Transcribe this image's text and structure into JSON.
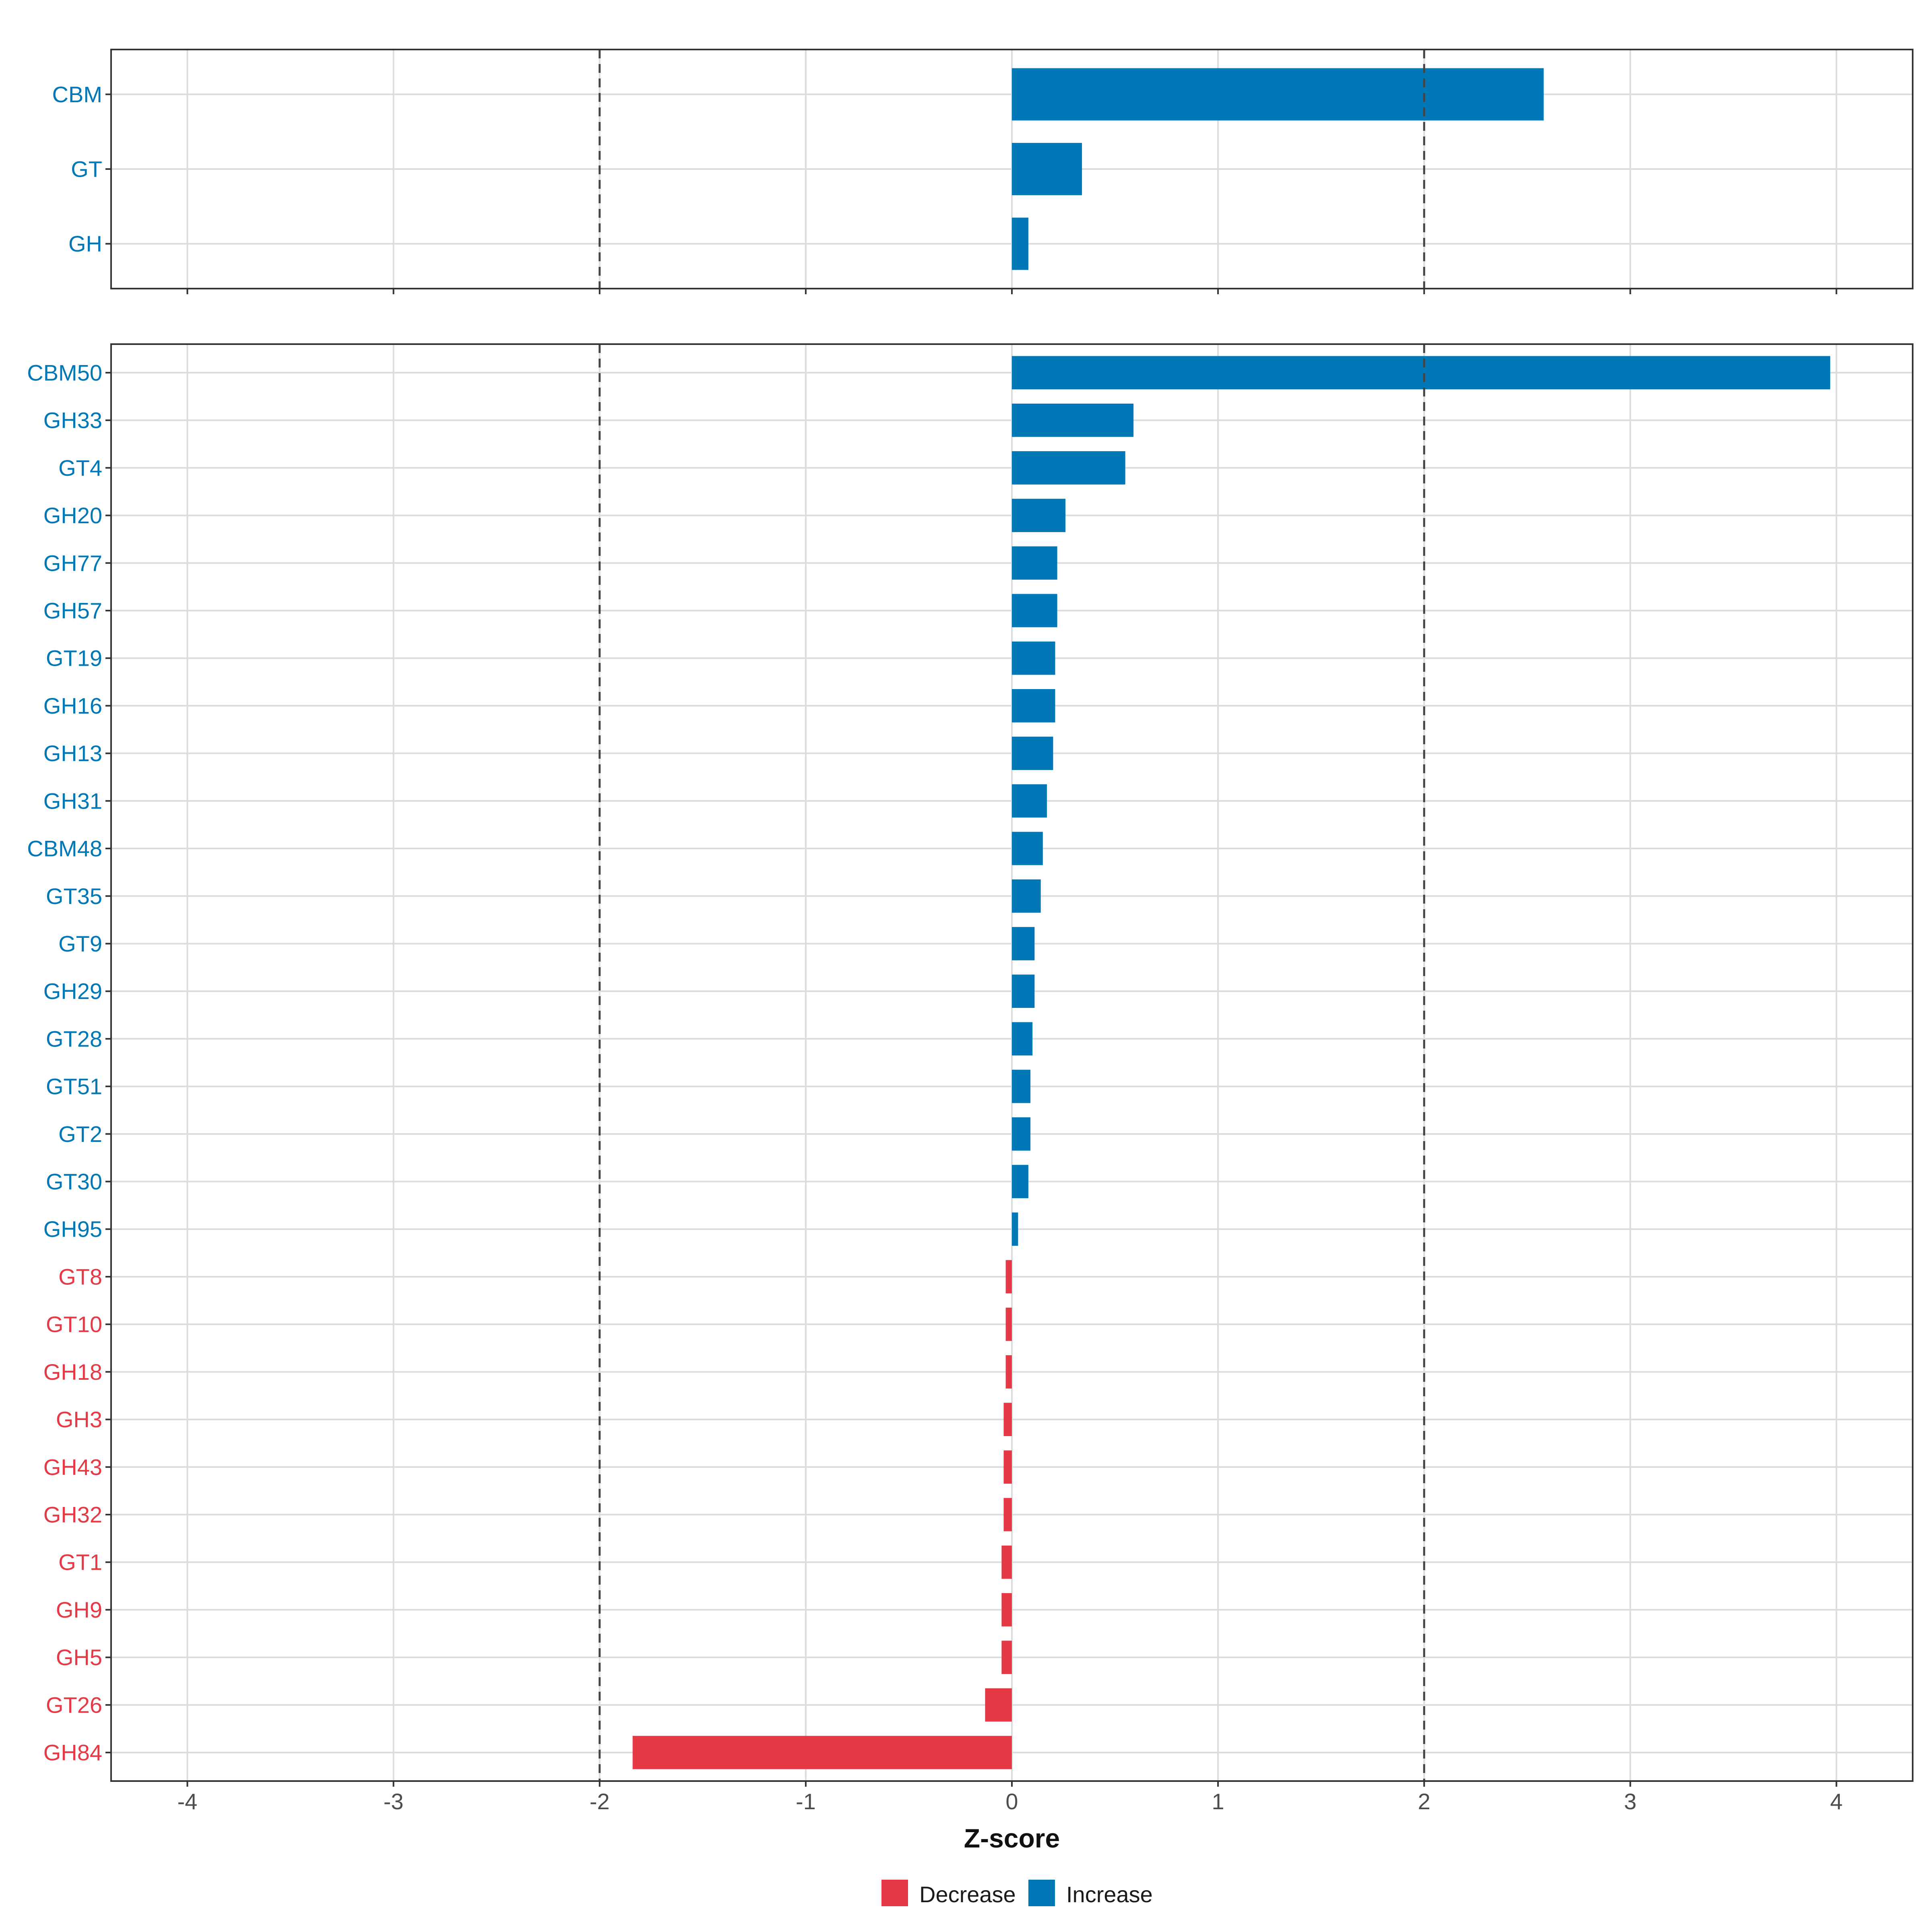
{
  "chart_data": {
    "type": "bar",
    "orientation": "horizontal",
    "xlabel": "Z-score",
    "xlim": [
      -4.37,
      4.37
    ],
    "xticks": [
      -4,
      -3,
      -2,
      -1,
      0,
      1,
      2,
      3,
      4
    ],
    "reference_lines": [
      -2,
      2
    ],
    "grid": true,
    "legend_position": "bottom",
    "colors": {
      "Decrease": "#e63946",
      "Increase": "#0077b6"
    },
    "panels": [
      {
        "categories": [
          "CBM",
          "GT",
          "GH"
        ],
        "values": [
          2.58,
          0.34,
          0.08
        ]
      },
      {
        "categories": [
          "CBM50",
          "GH33",
          "GT4",
          "GH20",
          "GH77",
          "GH57",
          "GT19",
          "GH16",
          "GH13",
          "GH31",
          "CBM48",
          "GT35",
          "GT9",
          "GH29",
          "GT28",
          "GT51",
          "GT2",
          "GT30",
          "GH95",
          "GT8",
          "GT10",
          "GH18",
          "GH3",
          "GH43",
          "GH32",
          "GT1",
          "GH9",
          "GH5",
          "GT26",
          "GH84"
        ],
        "values": [
          3.97,
          0.59,
          0.55,
          0.26,
          0.22,
          0.22,
          0.21,
          0.21,
          0.2,
          0.17,
          0.15,
          0.14,
          0.11,
          0.11,
          0.1,
          0.09,
          0.09,
          0.08,
          0.03,
          -0.03,
          -0.03,
          -0.03,
          -0.04,
          -0.04,
          -0.04,
          -0.05,
          -0.05,
          -0.05,
          -0.13,
          -1.84
        ]
      }
    ],
    "legend": [
      {
        "key": "Decrease",
        "label": "Decrease"
      },
      {
        "key": "Increase",
        "label": "Increase"
      }
    ]
  }
}
